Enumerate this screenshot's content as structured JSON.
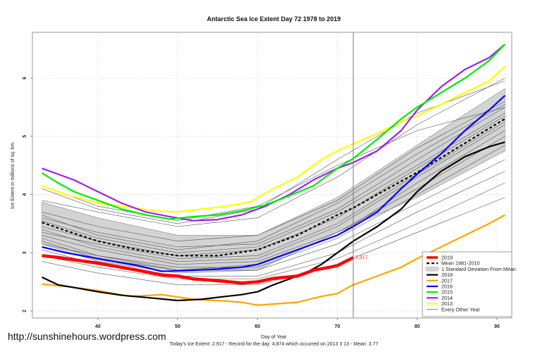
{
  "watermark": "http://sunshinehours.wordpress.com",
  "chart_data": {
    "type": "line",
    "title": "Antarctic Sea Ice Extent Day 72 1978 to 2019",
    "xlabel": "Day of Year",
    "ylabel": "Ice Extent in millions of sq. km.",
    "subtitle": "Today's Ice Extent: 2.917  - Record for the day: 4.874 which occurred on 2013 3 13  - Mean: 3.77",
    "xlim": [
      32,
      92
    ],
    "ylim": [
      1.88,
      6.88
    ],
    "xticks": [
      40,
      50,
      60,
      70,
      80,
      90
    ],
    "yticks": [
      2,
      3,
      4,
      5,
      6
    ],
    "grid": true,
    "current_day": 72,
    "current_value_label": "2.917",
    "legend_position": "bottom-right",
    "legend": [
      {
        "label": "2019",
        "color": "#ff0000",
        "style": "thick"
      },
      {
        "label": "Mean 1981-2010",
        "color": "#000000",
        "style": "dashed"
      },
      {
        "label": "1 Standard Deviation From Mean",
        "color": "#cccccc",
        "style": "band"
      },
      {
        "label": "2018",
        "color": "#000000",
        "style": "solid"
      },
      {
        "label": "2017",
        "color": "#ffa500",
        "style": "solid"
      },
      {
        "label": "2016",
        "color": "#0000ff",
        "style": "solid"
      },
      {
        "label": "2015",
        "color": "#00ee00",
        "style": "solid"
      },
      {
        "label": "2014",
        "color": "#a020f0",
        "style": "solid"
      },
      {
        "label": "2013",
        "color": "#ffff00",
        "style": "solid"
      },
      {
        "label": "Every Other Year",
        "color": "#555555",
        "style": "thin"
      }
    ],
    "sd_band": {
      "x": [
        33,
        40,
        50,
        60,
        70,
        80,
        91
      ],
      "upper": [
        3.87,
        3.6,
        3.3,
        3.3,
        3.95,
        4.85,
        5.82
      ],
      "lower": [
        3.15,
        2.85,
        2.65,
        2.7,
        3.35,
        3.95,
        4.75
      ]
    },
    "mean": {
      "x": [
        33,
        36,
        40,
        45,
        50,
        55,
        60,
        65,
        70,
        72,
        75,
        80,
        85,
        91
      ],
      "y": [
        3.52,
        3.38,
        3.2,
        3.05,
        2.95,
        2.95,
        3.05,
        3.3,
        3.65,
        3.77,
        4.0,
        4.38,
        4.8,
        5.3
      ]
    },
    "other_years": [
      {
        "x": [
          33,
          40,
          50,
          60,
          70,
          80,
          91
        ],
        "y": [
          3.9,
          3.7,
          3.45,
          3.6,
          4.3,
          5.2,
          6.0
        ]
      },
      {
        "x": [
          33,
          40,
          50,
          60,
          70,
          80,
          91
        ],
        "y": [
          4.1,
          3.75,
          3.5,
          3.75,
          4.6,
          5.4,
          5.95
        ]
      },
      {
        "x": [
          33,
          40,
          50,
          60,
          70,
          80,
          91
        ],
        "y": [
          3.7,
          3.45,
          3.2,
          3.3,
          3.9,
          4.8,
          5.6
        ]
      },
      {
        "x": [
          33,
          40,
          50,
          60,
          70,
          80,
          91
        ],
        "y": [
          3.6,
          3.35,
          3.1,
          3.15,
          3.75,
          4.6,
          5.5
        ]
      },
      {
        "x": [
          33,
          40,
          50,
          60,
          70,
          80,
          91
        ],
        "y": [
          3.45,
          3.2,
          2.95,
          3.05,
          3.6,
          4.45,
          5.35
        ]
      },
      {
        "x": [
          33,
          40,
          50,
          60,
          70,
          80,
          91
        ],
        "y": [
          3.4,
          3.1,
          2.85,
          2.9,
          3.45,
          4.3,
          5.2
        ]
      },
      {
        "x": [
          33,
          40,
          50,
          60,
          70,
          80,
          91
        ],
        "y": [
          3.3,
          3.05,
          2.8,
          2.85,
          3.35,
          4.1,
          5.0
        ]
      },
      {
        "x": [
          33,
          40,
          50,
          60,
          70,
          80,
          91
        ],
        "y": [
          3.25,
          2.95,
          2.75,
          2.75,
          3.25,
          4.0,
          4.85
        ]
      },
      {
        "x": [
          33,
          40,
          50,
          60,
          70,
          80,
          91
        ],
        "y": [
          3.2,
          2.9,
          2.7,
          2.7,
          3.15,
          3.85,
          4.6
        ]
      },
      {
        "x": [
          33,
          40,
          50,
          60,
          70,
          80,
          91
        ],
        "y": [
          3.05,
          2.8,
          2.6,
          2.6,
          3.0,
          3.7,
          4.4
        ]
      },
      {
        "x": [
          33,
          40,
          50,
          60,
          70,
          80,
          91
        ],
        "y": [
          2.95,
          2.75,
          2.55,
          2.55,
          2.9,
          3.5,
          4.2
        ]
      },
      {
        "x": [
          33,
          40,
          50,
          60,
          70,
          80,
          91
        ],
        "y": [
          2.85,
          2.65,
          2.45,
          2.45,
          2.8,
          3.35,
          3.95
        ]
      },
      {
        "x": [
          33,
          40,
          50,
          60,
          70,
          80,
          91
        ],
        "y": [
          3.55,
          3.25,
          3.0,
          3.1,
          3.7,
          4.5,
          5.4
        ]
      },
      {
        "x": [
          33,
          40,
          50,
          60,
          70,
          80,
          91
        ],
        "y": [
          3.65,
          3.3,
          3.05,
          3.2,
          3.85,
          4.7,
          5.55
        ]
      },
      {
        "x": [
          33,
          40,
          50,
          60,
          70,
          80,
          91
        ],
        "y": [
          3.35,
          3.15,
          2.9,
          2.95,
          3.5,
          4.35,
          5.25
        ]
      },
      {
        "x": [
          33,
          40,
          50,
          60,
          70,
          80,
          91
        ],
        "y": [
          3.15,
          2.95,
          2.7,
          2.8,
          3.3,
          4.2,
          5.1
        ]
      },
      {
        "x": [
          33,
          40,
          50,
          60,
          70,
          80,
          91
        ],
        "y": [
          4.15,
          3.8,
          3.55,
          3.8,
          4.5,
          5.1,
          5.5
        ]
      }
    ],
    "series": [
      {
        "name": "2013",
        "color": "#ffff00",
        "x": [
          33,
          36,
          40,
          44,
          47,
          50,
          53,
          56,
          59,
          62,
          65,
          68,
          70,
          72,
          75,
          78,
          80,
          83,
          86,
          89,
          91
        ],
        "y": [
          4.15,
          4.0,
          3.85,
          3.78,
          3.72,
          3.7,
          3.75,
          3.8,
          3.87,
          4.1,
          4.3,
          4.6,
          4.75,
          4.874,
          5.05,
          5.25,
          5.35,
          5.55,
          5.75,
          5.95,
          6.2
        ]
      },
      {
        "name": "2014",
        "color": "#a020f0",
        "x": [
          33,
          35,
          37,
          40,
          43,
          46,
          49,
          52,
          55,
          58,
          61,
          64,
          67,
          70,
          72,
          75,
          78,
          80,
          83,
          86,
          89,
          91
        ],
        "y": [
          4.45,
          4.35,
          4.25,
          4.05,
          3.85,
          3.7,
          3.62,
          3.55,
          3.57,
          3.65,
          3.8,
          4.0,
          4.25,
          4.45,
          4.55,
          4.75,
          5.1,
          5.45,
          5.85,
          6.15,
          6.35,
          6.58
        ]
      },
      {
        "name": "2015",
        "color": "#00ee00",
        "x": [
          33,
          35,
          37,
          40,
          43,
          46,
          49,
          52,
          55,
          58,
          61,
          64,
          67,
          70,
          72,
          75,
          78,
          80,
          83,
          86,
          89,
          91
        ],
        "y": [
          4.37,
          4.2,
          4.05,
          3.9,
          3.75,
          3.65,
          3.58,
          3.62,
          3.65,
          3.72,
          3.82,
          3.98,
          4.15,
          4.45,
          4.62,
          4.95,
          5.3,
          5.5,
          5.75,
          6.0,
          6.3,
          6.58
        ]
      },
      {
        "name": "2016",
        "color": "#0000ff",
        "x": [
          33,
          36,
          40,
          45,
          48,
          52,
          55,
          58,
          60,
          63,
          66,
          70,
          72,
          75,
          78,
          80,
          83,
          86,
          89,
          91
        ],
        "y": [
          3.1,
          3.0,
          2.9,
          2.78,
          2.68,
          2.7,
          2.72,
          2.75,
          2.8,
          2.95,
          3.1,
          3.3,
          3.45,
          3.7,
          4.1,
          4.35,
          4.7,
          5.1,
          5.45,
          5.7
        ]
      },
      {
        "name": "2017",
        "color": "#ffa500",
        "x": [
          33,
          36,
          40,
          44,
          48,
          52,
          56,
          58,
          60,
          62,
          65,
          68,
          70,
          72,
          75,
          78,
          80,
          83,
          86,
          89,
          91
        ],
        "y": [
          2.46,
          2.42,
          2.35,
          2.25,
          2.28,
          2.2,
          2.17,
          2.15,
          2.1,
          2.12,
          2.15,
          2.25,
          2.3,
          2.45,
          2.6,
          2.75,
          2.9,
          3.1,
          3.3,
          3.5,
          3.65
        ]
      },
      {
        "name": "2018",
        "color": "#000000",
        "x": [
          33,
          35,
          38,
          40,
          43,
          47,
          50,
          53,
          56,
          58,
          60,
          62,
          64,
          66,
          68,
          70,
          72,
          75,
          78,
          80,
          83,
          86,
          89,
          91
        ],
        "y": [
          2.58,
          2.45,
          2.38,
          2.33,
          2.27,
          2.22,
          2.18,
          2.2,
          2.25,
          2.28,
          2.33,
          2.45,
          2.55,
          2.65,
          2.8,
          3.0,
          3.2,
          3.45,
          3.75,
          4.05,
          4.4,
          4.65,
          4.82,
          4.9
        ]
      },
      {
        "name": "2019",
        "color": "#ff0000",
        "x": [
          33,
          35,
          37,
          40,
          45,
          48,
          50,
          52,
          55,
          58,
          60,
          62,
          65,
          67,
          69,
          70,
          71,
          72
        ],
        "y": [
          2.95,
          2.92,
          2.88,
          2.82,
          2.7,
          2.62,
          2.6,
          2.55,
          2.52,
          2.48,
          2.5,
          2.56,
          2.6,
          2.7,
          2.75,
          2.78,
          2.85,
          2.917
        ]
      }
    ]
  }
}
